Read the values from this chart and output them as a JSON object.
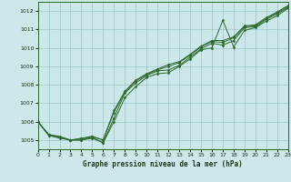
{
  "title": "Graphe pression niveau de la mer (hPa)",
  "bg_color": "#cce8ea",
  "grid_color": "#9ec8cc",
  "line_color": "#2d6a2d",
  "xlim": [
    0,
    23
  ],
  "ylim": [
    1004.5,
    1012.5
  ],
  "yticks": [
    1005,
    1006,
    1007,
    1008,
    1009,
    1010,
    1011,
    1012
  ],
  "xticks": [
    0,
    1,
    2,
    3,
    4,
    5,
    6,
    7,
    8,
    9,
    10,
    11,
    12,
    13,
    14,
    15,
    16,
    17,
    18,
    19,
    20,
    21,
    22,
    23
  ],
  "series": [
    [
      1006.0,
      1005.3,
      1005.2,
      1005.0,
      1005.0,
      1005.1,
      1004.85,
      1006.0,
      1007.3,
      1007.9,
      1008.4,
      1008.6,
      1008.65,
      1009.0,
      1009.4,
      1009.9,
      1010.0,
      1011.5,
      1010.05,
      1010.95,
      1011.1,
      1011.45,
      1011.75,
      1012.15
    ],
    [
      1006.0,
      1005.3,
      1005.15,
      1005.0,
      1005.0,
      1005.15,
      1004.85,
      1006.2,
      1007.55,
      1008.1,
      1008.5,
      1008.75,
      1008.8,
      1009.05,
      1009.5,
      1009.95,
      1010.25,
      1010.15,
      1010.4,
      1011.1,
      1011.15,
      1011.55,
      1011.85,
      1012.2
    ],
    [
      1006.0,
      1005.25,
      1005.15,
      1005.0,
      1005.1,
      1005.2,
      1005.0,
      1006.5,
      1007.6,
      1008.2,
      1008.55,
      1008.8,
      1009.0,
      1009.2,
      1009.6,
      1010.05,
      1010.35,
      1010.3,
      1010.55,
      1011.15,
      1011.2,
      1011.6,
      1011.9,
      1012.25
    ],
    [
      1006.0,
      1005.25,
      1005.1,
      1005.0,
      1005.05,
      1005.2,
      1005.0,
      1006.6,
      1007.65,
      1008.25,
      1008.6,
      1008.85,
      1009.1,
      1009.25,
      1009.65,
      1010.1,
      1010.4,
      1010.4,
      1010.6,
      1011.2,
      1011.25,
      1011.65,
      1011.95,
      1012.3
    ]
  ]
}
